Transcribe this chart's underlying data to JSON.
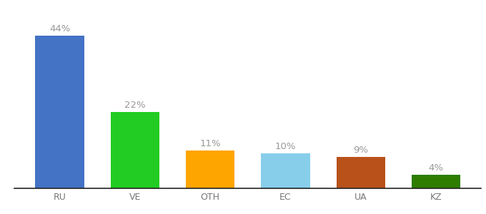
{
  "categories": [
    "RU",
    "VE",
    "OTH",
    "EC",
    "UA",
    "KZ"
  ],
  "values": [
    44,
    22,
    11,
    10,
    9,
    4
  ],
  "labels": [
    "44%",
    "22%",
    "11%",
    "10%",
    "9%",
    "4%"
  ],
  "bar_colors": [
    "#4472C4",
    "#22CC22",
    "#FFA500",
    "#87CEEB",
    "#B8511A",
    "#2E7D00"
  ],
  "background_color": "#ffffff",
  "label_color": "#999999",
  "label_fontsize": 9.5,
  "tick_fontsize": 9,
  "tick_color": "#777777",
  "ylim": [
    0,
    50
  ],
  "bar_width": 0.65,
  "figsize": [
    6.8,
    3.0
  ],
  "dpi": 100
}
